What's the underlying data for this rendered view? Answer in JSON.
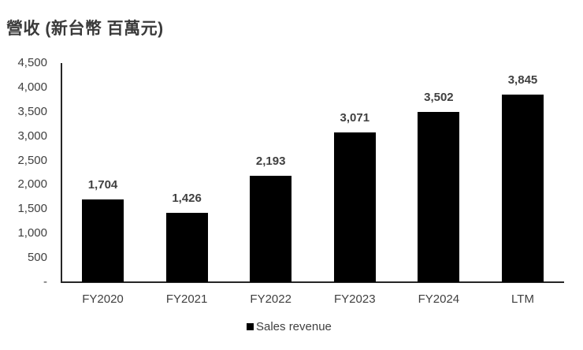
{
  "chart_data": {
    "type": "bar",
    "title": "營收 (新台幣 百萬元)",
    "categories": [
      "FY2020",
      "FY2021",
      "FY2022",
      "FY2023",
      "FY2024",
      "LTM"
    ],
    "series": [
      {
        "name": "Sales revenue",
        "values": [
          1704,
          1426,
          2193,
          3071,
          3502,
          3845
        ],
        "color": "#000000"
      }
    ],
    "data_labels": [
      "1,704",
      "1,426",
      "2,193",
      "3,071",
      "3,502",
      "3,845"
    ],
    "xlabel": "",
    "ylabel": "",
    "ylim": [
      0,
      4500
    ],
    "yticks": [
      0,
      500,
      1000,
      1500,
      2000,
      2500,
      3000,
      3500,
      4000,
      4500
    ],
    "ytick_labels": [
      "-",
      "500",
      "1,000",
      "1,500",
      "2,000",
      "2,500",
      "3,000",
      "3,500",
      "4,000",
      "4,500"
    ],
    "grid": false,
    "legend_position": "bottom"
  },
  "title": "營收 (新台幣 百萬元)",
  "legend": {
    "label": "Sales revenue"
  }
}
